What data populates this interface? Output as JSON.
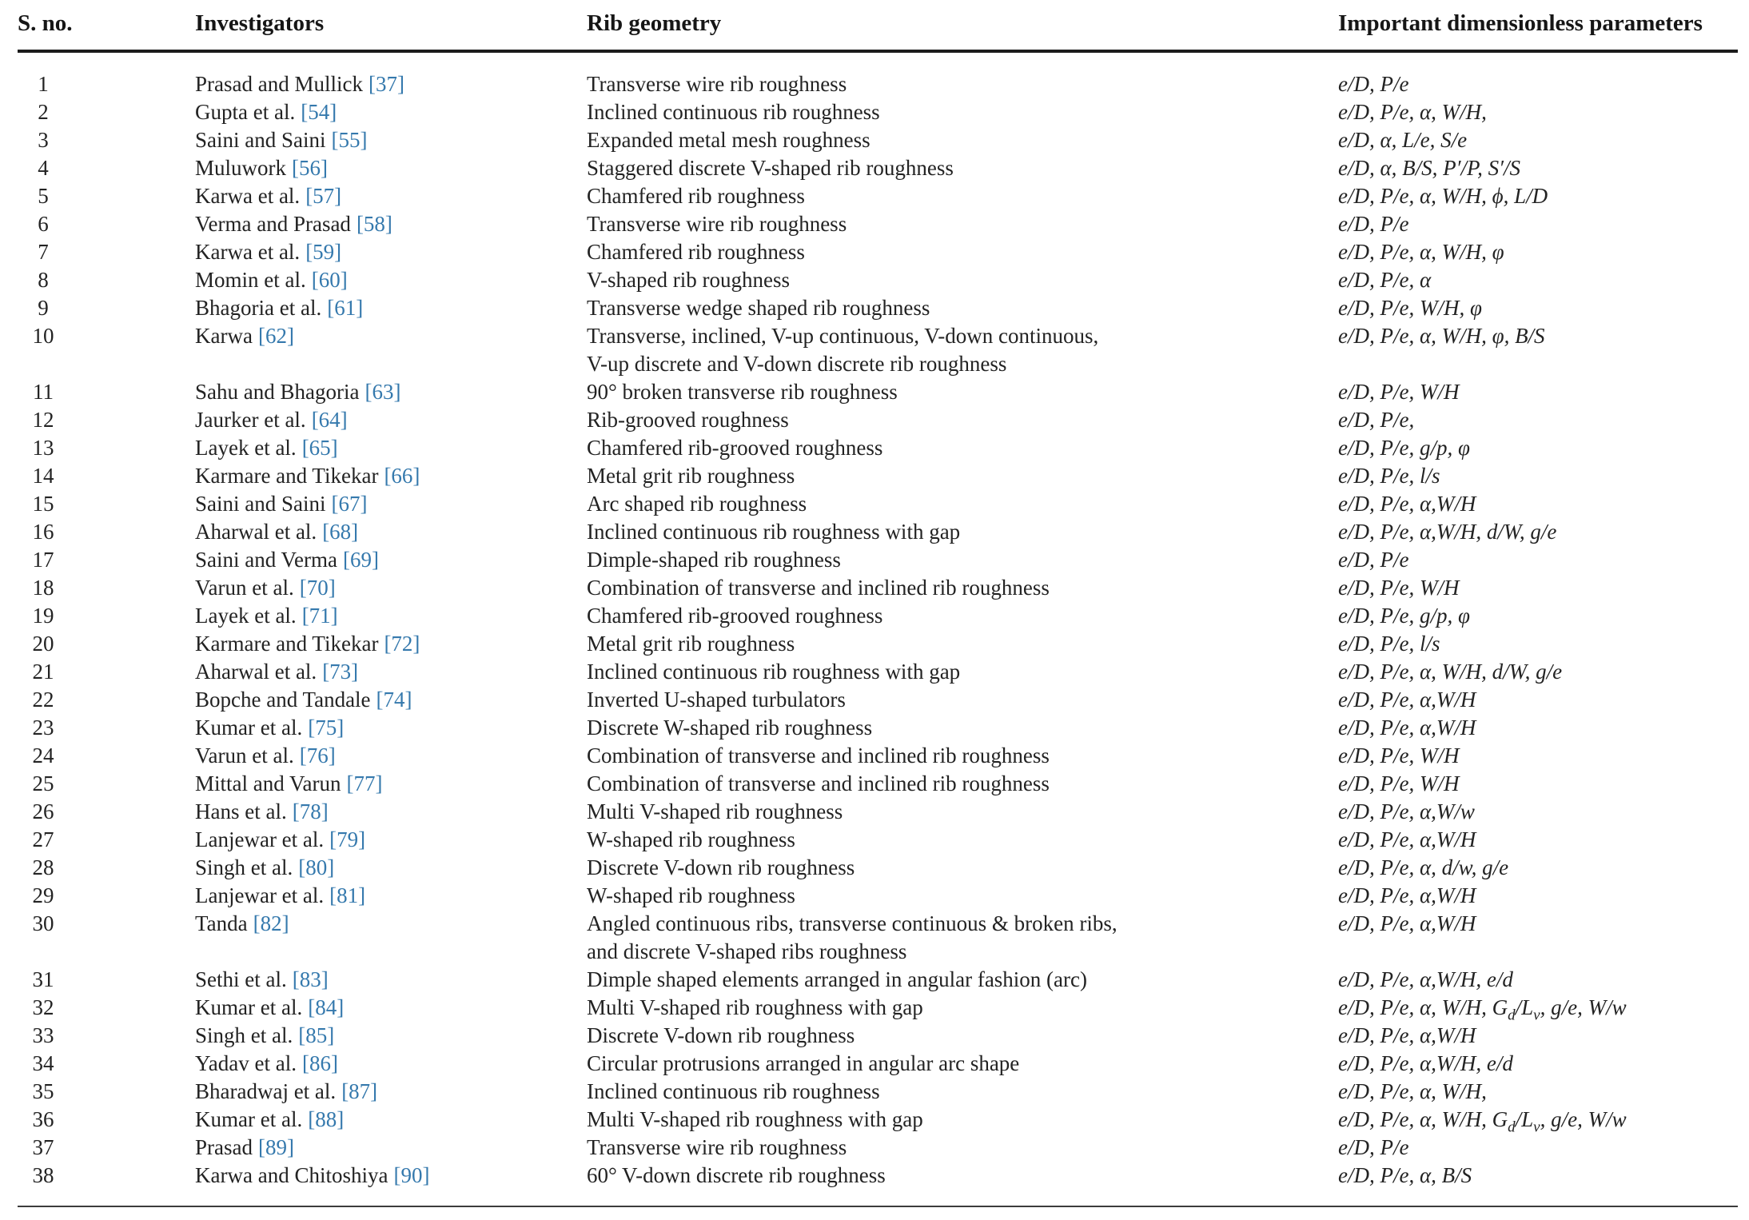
{
  "colors": {
    "reference_link": "#3579ad",
    "text": "#232323",
    "rule": "#1b1b1b"
  },
  "table": {
    "headers": [
      "S. no.",
      "Investigators",
      "Rib geometry",
      "Important dimensionless parameters"
    ],
    "rows": [
      {
        "sno": "1",
        "investigator": "Prasad and Mullick",
        "ref": "[37]",
        "geometry": "Transverse wire rib roughness",
        "params": "e/D, P/e"
      },
      {
        "sno": "2",
        "investigator": "Gupta et al.",
        "ref": "[54]",
        "geometry": "Inclined continuous rib roughness",
        "params": "e/D, P/e, α, W/H,"
      },
      {
        "sno": "3",
        "investigator": "Saini and Saini",
        "ref": "[55]",
        "geometry": "Expanded metal mesh roughness",
        "params": "e/D, α, L/e, S/e"
      },
      {
        "sno": "4",
        "investigator": "Muluwork",
        "ref": "[56]",
        "geometry": "Staggered discrete V-shaped rib roughness",
        "params": "e/D, α, B/S, P′/P, S′/S"
      },
      {
        "sno": "5",
        "investigator": "Karwa et al.",
        "ref": "[57]",
        "geometry": "Chamfered rib roughness",
        "params": "e/D, P/e, α, W/H, ϕ, L/D"
      },
      {
        "sno": "6",
        "investigator": "Verma and Prasad",
        "ref": "[58]",
        "geometry": "Transverse wire rib roughness",
        "params": "e/D, P/e"
      },
      {
        "sno": "7",
        "investigator": "Karwa et al.",
        "ref": "[59]",
        "geometry": "Chamfered rib roughness",
        "params": "e/D, P/e, α, W/H, φ"
      },
      {
        "sno": "8",
        "investigator": "Momin et al.",
        "ref": "[60]",
        "geometry": "V-shaped rib roughness",
        "params": "e/D, P/e, α"
      },
      {
        "sno": "9",
        "investigator": "Bhagoria et al.",
        "ref": "[61]",
        "geometry": "Transverse wedge shaped rib roughness",
        "params": "e/D, P/e, W/H, φ"
      },
      {
        "sno": "10",
        "investigator": "Karwa",
        "ref": "[62]",
        "geometry": "Transverse, inclined, V-up continuous, V-down continuous,\nV-up discrete and V-down discrete rib roughness",
        "params": "e/D, P/e, α, W/H, φ, B/S"
      },
      {
        "sno": "11",
        "investigator": "Sahu and Bhagoria",
        "ref": "[63]",
        "geometry": "90° broken transverse rib roughness",
        "params": "e/D, P/e, W/H"
      },
      {
        "sno": "12",
        "investigator": "Jaurker et al.",
        "ref": "[64]",
        "geometry": "Rib-grooved roughness",
        "params": "e/D, P/e,"
      },
      {
        "sno": "13",
        "investigator": "Layek et al.",
        "ref": "[65]",
        "geometry": "Chamfered rib-grooved roughness",
        "params": "e/D, P/e, g/p, φ"
      },
      {
        "sno": "14",
        "investigator": "Karmare and Tikekar",
        "ref": "[66]",
        "geometry": "Metal grit rib roughness",
        "params": "e/D, P/e, l/s"
      },
      {
        "sno": "15",
        "investigator": "Saini and Saini",
        "ref": "[67]",
        "geometry": "Arc shaped rib roughness",
        "params": "e/D, P/e, α,W/H"
      },
      {
        "sno": "16",
        "investigator": "Aharwal et al.",
        "ref": "[68]",
        "geometry": "Inclined continuous rib roughness with gap",
        "params": "e/D, P/e, α,W/H, d/W, g/e"
      },
      {
        "sno": "17",
        "investigator": "Saini and Verma",
        "ref": "[69]",
        "geometry": "Dimple-shaped rib roughness",
        "params": "e/D, P/e"
      },
      {
        "sno": "18",
        "investigator": "Varun et al.",
        "ref": "[70]",
        "geometry": "Combination of transverse and inclined rib roughness",
        "params": "e/D, P/e, W/H"
      },
      {
        "sno": "19",
        "investigator": "Layek et al.",
        "ref": "[71]",
        "geometry": "Chamfered rib-grooved roughness",
        "params": "e/D, P/e, g/p, φ"
      },
      {
        "sno": "20",
        "investigator": "Karmare and Tikekar",
        "ref": "[72]",
        "geometry": "Metal grit rib roughness",
        "params": "e/D, P/e, l/s"
      },
      {
        "sno": "21",
        "investigator": "Aharwal et al.",
        "ref": "[73]",
        "geometry": "Inclined continuous rib roughness with gap",
        "params": "e/D, P/e, α, W/H, d/W, g/e"
      },
      {
        "sno": "22",
        "investigator": "Bopche and Tandale",
        "ref": "[74]",
        "geometry": "Inverted U-shaped turbulators",
        "params": "e/D, P/e, α,W/H"
      },
      {
        "sno": "23",
        "investigator": "Kumar et al.",
        "ref": "[75]",
        "geometry": "Discrete W-shaped rib roughness",
        "params": "e/D, P/e, α,W/H"
      },
      {
        "sno": "24",
        "investigator": "Varun et al.",
        "ref": "[76]",
        "geometry": "Combination of transverse and inclined rib roughness",
        "params": "e/D, P/e, W/H"
      },
      {
        "sno": "25",
        "investigator": "Mittal and Varun",
        "ref": "[77]",
        "geometry": "Combination of transverse and inclined rib roughness",
        "params": "e/D, P/e, W/H"
      },
      {
        "sno": "26",
        "investigator": "Hans et al.",
        "ref": "[78]",
        "geometry": "Multi V-shaped rib roughness",
        "params": "e/D, P/e, α,W/w"
      },
      {
        "sno": "27",
        "investigator": "Lanjewar et al.",
        "ref": "[79]",
        "geometry": "W-shaped rib roughness",
        "params": "e/D, P/e, α,W/H"
      },
      {
        "sno": "28",
        "investigator": "Singh et al.",
        "ref": "[80]",
        "geometry": "Discrete V-down rib roughness",
        "params": "e/D, P/e, α, d/w, g/e"
      },
      {
        "sno": "29",
        "investigator": "Lanjewar et al.",
        "ref": "[81]",
        "geometry": "W-shaped rib roughness",
        "params": "e/D, P/e, α,W/H"
      },
      {
        "sno": "30",
        "investigator": "Tanda",
        "ref": "[82]",
        "geometry": "Angled continuous ribs, transverse continuous & broken ribs,\nand discrete V-shaped ribs roughness",
        "params": "e/D, P/e, α,W/H"
      },
      {
        "sno": "31",
        "investigator": "Sethi et al.",
        "ref": "[83]",
        "geometry": "Dimple shaped elements arranged in angular fashion (arc)",
        "params": "e/D, P/e, α,W/H, e/d"
      },
      {
        "sno": "32",
        "investigator": "Kumar et al.",
        "ref": "[84]",
        "geometry": "Multi V-shaped rib roughness with gap",
        "params": "e/D, P/e, α, W/H, G<sub>d</sub>/L<sub>v</sub>, g/e, W/w"
      },
      {
        "sno": "33",
        "investigator": "Singh et al.",
        "ref": "[85]",
        "geometry": "Discrete V-down rib roughness",
        "params": "e/D, P/e, α,W/H"
      },
      {
        "sno": "34",
        "investigator": "Yadav et al.",
        "ref": "[86]",
        "geometry": "Circular protrusions arranged in angular arc shape",
        "params": "e/D, P/e, α,W/H, e/d"
      },
      {
        "sno": "35",
        "investigator": "Bharadwaj et al.",
        "ref": "[87]",
        "geometry": "Inclined continuous rib roughness",
        "params": "e/D, P/e, α, W/H,"
      },
      {
        "sno": "36",
        "investigator": "Kumar et al.",
        "ref": "[88]",
        "geometry": "Multi V-shaped rib roughness with gap",
        "params": "e/D, P/e, α, W/H, G<sub>d</sub>/L<sub>v</sub>, g/e, W/w"
      },
      {
        "sno": "37",
        "investigator": "Prasad",
        "ref": "[89]",
        "geometry": "Transverse wire rib roughness",
        "params": "e/D, P/e"
      },
      {
        "sno": "38",
        "investigator": "Karwa and Chitoshiya",
        "ref": "[90]",
        "geometry": "60° V-down discrete rib roughness",
        "params": "e/D, P/e, α, B/S"
      }
    ]
  }
}
